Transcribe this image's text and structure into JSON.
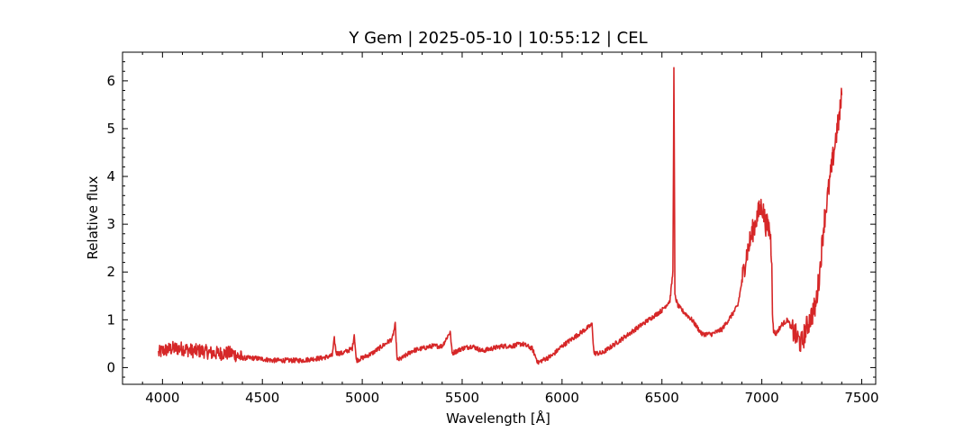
{
  "chart_data": {
    "type": "line",
    "title": "Y Gem | 2025-05-10 | 10:55:12 | CEL",
    "xlabel": "Wavelength [Å]",
    "ylabel": "Relative flux",
    "xlim": [
      3800,
      7570
    ],
    "ylim": [
      -0.35,
      6.6
    ],
    "xticks": [
      4000,
      4500,
      5000,
      5500,
      6000,
      6500,
      7000,
      7500
    ],
    "yticks": [
      0,
      1,
      2,
      3,
      4,
      5,
      6
    ],
    "grid": false,
    "legend": "none",
    "series": [
      {
        "color": "#d62728",
        "x": [
          3980,
          4000,
          4050,
          4100,
          4150,
          4200,
          4250,
          4300,
          4350,
          4400,
          4450,
          4500,
          4550,
          4600,
          4650,
          4700,
          4750,
          4800,
          4850,
          4860,
          4870,
          4900,
          4950,
          4960,
          4970,
          5000,
          5050,
          5100,
          5150,
          5165,
          5175,
          5200,
          5250,
          5300,
          5350,
          5400,
          5440,
          5450,
          5500,
          5550,
          5600,
          5650,
          5700,
          5750,
          5800,
          5850,
          5880,
          5900,
          5950,
          6000,
          6050,
          6100,
          6150,
          6160,
          6200,
          6250,
          6300,
          6350,
          6400,
          6450,
          6500,
          6520,
          6540,
          6555,
          6560,
          6565,
          6580,
          6600,
          6650,
          6700,
          6750,
          6800,
          6850,
          6880,
          6900,
          6920,
          6950,
          6980,
          7000,
          7020,
          7040,
          7050,
          7055,
          7070,
          7100,
          7130,
          7150,
          7180,
          7200,
          7220,
          7250,
          7270,
          7290,
          7300,
          7310,
          7330,
          7350,
          7370,
          7390,
          7400
        ],
        "y": [
          0.3,
          0.35,
          0.4,
          0.4,
          0.35,
          0.35,
          0.3,
          0.3,
          0.3,
          0.2,
          0.2,
          0.18,
          0.15,
          0.15,
          0.15,
          0.15,
          0.18,
          0.2,
          0.25,
          0.6,
          0.3,
          0.3,
          0.4,
          0.7,
          0.15,
          0.2,
          0.3,
          0.45,
          0.6,
          0.9,
          0.15,
          0.2,
          0.35,
          0.4,
          0.45,
          0.45,
          0.75,
          0.3,
          0.4,
          0.45,
          0.35,
          0.4,
          0.45,
          0.45,
          0.5,
          0.4,
          0.1,
          0.15,
          0.25,
          0.45,
          0.6,
          0.75,
          0.9,
          0.3,
          0.3,
          0.45,
          0.6,
          0.75,
          0.9,
          1.05,
          1.2,
          1.3,
          1.4,
          2.0,
          6.25,
          1.5,
          1.3,
          1.2,
          1.0,
          0.7,
          0.7,
          0.8,
          1.1,
          1.3,
          1.8,
          2.3,
          2.8,
          3.2,
          3.4,
          3.0,
          2.9,
          2.3,
          0.8,
          0.7,
          0.9,
          1.0,
          0.8,
          0.6,
          0.5,
          0.8,
          1.1,
          1.3,
          2.0,
          2.5,
          3.0,
          3.6,
          4.2,
          4.8,
          5.3,
          5.7
        ]
      }
    ]
  }
}
